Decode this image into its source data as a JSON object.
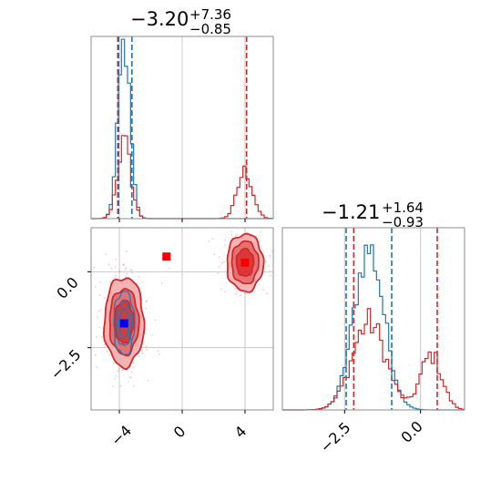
{
  "colors": {
    "blue": "#1f77b4",
    "red": "#d62728",
    "red_fill_1": "#f2b3b4",
    "red_fill_2": "#e57273",
    "red_fill_3": "#d83a3c",
    "grid": "#c8c8c8",
    "spine": "#8c8c8c",
    "marker_red": "#ff0000",
    "marker_blue": "#0000ff"
  },
  "chart_data": {
    "type": "corner",
    "params": [
      {
        "range": [
          -5.8,
          5.8
        ],
        "ticks": [
          "−4",
          "0",
          "4"
        ],
        "tick_values": [
          -4,
          0,
          4
        ],
        "title": {
          "main": "−3.20",
          "sup": "+7.36",
          "sub": "−0.85"
        }
      },
      {
        "range": [
          -4.55,
          1.45
        ],
        "ticks": [
          "0.0",
          "−2.5"
        ],
        "tick_values": [
          0.0,
          -2.5
        ],
        "title": {
          "main": "−1.21",
          "sup": "+1.64",
          "sub": "−0.93"
        }
      }
    ],
    "hist1d": [
      {
        "param": 0,
        "blue_peak": {
          "center": -3.7,
          "sigma": 0.38,
          "height": 0.96
        },
        "red_peaks": [
          {
            "center": -3.7,
            "sigma": 0.42,
            "height": 0.42
          },
          {
            "center": 4.0,
            "sigma": 0.48,
            "height": 0.26
          }
        ],
        "blue_vlines": [
          -4.05,
          -3.2
        ],
        "red_vlines": [
          -4.1,
          4.1
        ]
      },
      {
        "param": 1,
        "blue_peak": {
          "center": -1.7,
          "sigma": 0.5,
          "height": 0.88
        },
        "red_peaks": [
          {
            "center": -1.7,
            "sigma": 0.55,
            "height": 0.48
          },
          {
            "center": 0.35,
            "sigma": 0.35,
            "height": 0.3
          }
        ],
        "blue_vlines": [
          -2.45,
          -0.95
        ],
        "red_vlines": [
          -2.2,
          0.55
        ]
      }
    ],
    "hist2d": {
      "blue_blob": {
        "center": [
          -3.7,
          -1.7
        ],
        "sigma": [
          0.35,
          0.55
        ]
      },
      "red_blobs": [
        {
          "center": [
            -3.7,
            -1.65
          ],
          "sigma": [
            0.6,
            0.7
          ]
        },
        {
          "center": [
            4.0,
            0.3
          ],
          "sigma": [
            0.55,
            0.45
          ]
        }
      ],
      "markers": [
        {
          "x": -1.0,
          "y": 0.5,
          "color": "red"
        },
        {
          "x": 4.0,
          "y": 0.3,
          "color": "red"
        },
        {
          "x": -3.7,
          "y": -1.7,
          "color": "blue"
        }
      ]
    }
  }
}
